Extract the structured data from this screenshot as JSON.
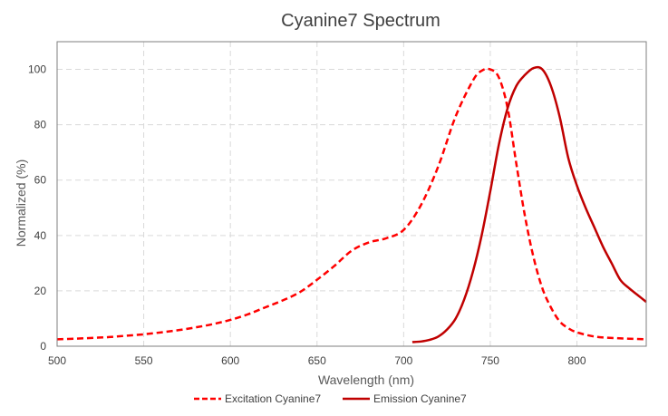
{
  "chart_data": {
    "type": "line",
    "title": "Cyanine7  Spectrum",
    "xlabel": "Wavelength (nm)",
    "ylabel": "Normalized (%)",
    "xlim": [
      500,
      840
    ],
    "ylim": [
      0,
      110
    ],
    "xticks": [
      "500",
      "550",
      "600",
      "650",
      "700",
      "750",
      "800"
    ],
    "yticks": [
      "0",
      "20",
      "40",
      "60",
      "80",
      "100"
    ],
    "grid": true,
    "legend_position": "bottom",
    "series": [
      {
        "name": "Excitation Cyanine7",
        "color": "#ff0000",
        "style": "dashed",
        "x": [
          500,
          510,
          520,
          530,
          540,
          550,
          560,
          570,
          580,
          590,
          600,
          610,
          620,
          630,
          640,
          650,
          660,
          670,
          680,
          690,
          700,
          710,
          720,
          730,
          740,
          745,
          750,
          755,
          760,
          765,
          770,
          775,
          780,
          785,
          790,
          795,
          800,
          810,
          820,
          830,
          840
        ],
        "y": [
          2.5,
          2.7,
          3.0,
          3.3,
          3.8,
          4.3,
          5.0,
          5.8,
          6.8,
          8.0,
          9.5,
          11.5,
          14.0,
          16.5,
          19.5,
          24.0,
          29.0,
          34.5,
          37.5,
          39.0,
          42.0,
          51.0,
          65.0,
          83.0,
          96.0,
          99.5,
          100.0,
          97.0,
          86.0,
          66.0,
          47.0,
          32.0,
          21.0,
          14.0,
          9.0,
          6.5,
          5.0,
          3.5,
          3.0,
          2.7,
          2.5
        ]
      },
      {
        "name": "Emission Cyanine7",
        "color": "#c00000",
        "style": "solid",
        "x": [
          705,
          710,
          715,
          720,
          725,
          730,
          735,
          740,
          745,
          750,
          755,
          760,
          765,
          770,
          775,
          780,
          785,
          790,
          795,
          800,
          805,
          810,
          815,
          820,
          825,
          830,
          835,
          840
        ],
        "y": [
          1.5,
          1.7,
          2.3,
          3.5,
          6.0,
          10.0,
          17.0,
          27.0,
          40.0,
          56.0,
          73.0,
          86.0,
          94.0,
          98.0,
          100.5,
          100.0,
          94.0,
          83.0,
          68.0,
          58.0,
          50.0,
          43.0,
          36.0,
          30.0,
          24.0,
          21.0,
          18.5,
          16.0
        ]
      }
    ]
  }
}
